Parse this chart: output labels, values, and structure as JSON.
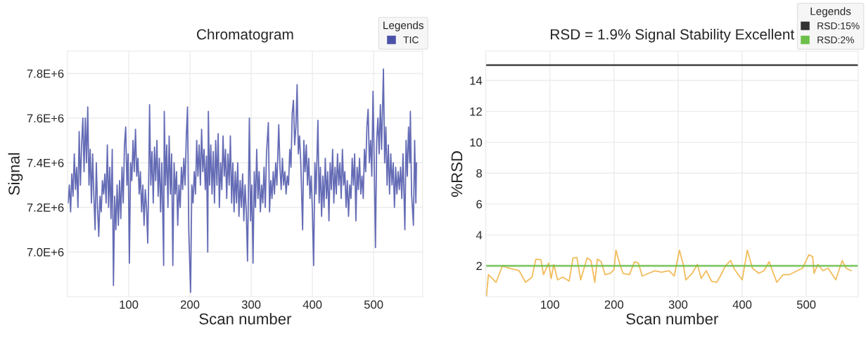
{
  "chart_data": [
    {
      "type": "line",
      "title": "Chromatogram",
      "xlabel": "Scan number",
      "ylabel": "Signal",
      "xlim": [
        0,
        580
      ],
      "ylim": [
        6800000,
        7900000
      ],
      "xticks": [
        100,
        200,
        300,
        400,
        500
      ],
      "yticks": [
        {
          "value": 7000000,
          "label": "7.0E+6"
        },
        {
          "value": 7200000,
          "label": "7.2E+6"
        },
        {
          "value": 7400000,
          "label": "7.4E+6"
        },
        {
          "value": 7600000,
          "label": "7.6E+6"
        },
        {
          "value": 7800000,
          "label": "7.8E+6"
        }
      ],
      "grid": true,
      "legend": "top right",
      "legend_title": "Legends",
      "series": [
        {
          "name": "TIC",
          "color": "#4a52a8",
          "x": [
            1,
            3,
            5,
            7,
            9,
            11,
            13,
            15,
            17,
            19,
            21,
            23,
            25,
            27,
            29,
            31,
            33,
            35,
            37,
            39,
            41,
            43,
            45,
            47,
            49,
            51,
            53,
            55,
            57,
            59,
            61,
            63,
            65,
            67,
            69,
            71,
            73,
            75,
            77,
            79,
            81,
            83,
            85,
            87,
            89,
            91,
            93,
            95,
            97,
            99,
            101,
            103,
            105,
            107,
            109,
            111,
            113,
            115,
            117,
            119,
            121,
            123,
            125,
            127,
            129,
            131,
            133,
            134,
            136,
            138,
            140,
            142,
            144,
            146,
            148,
            150,
            152,
            154,
            156,
            157,
            158,
            160,
            162,
            164,
            166,
            168,
            170,
            172,
            174,
            176,
            178,
            180,
            182,
            184,
            186,
            188,
            190,
            192,
            194,
            196,
            198,
            201,
            203,
            205,
            207,
            209,
            211,
            213,
            215,
            217,
            219,
            221,
            223,
            225,
            227,
            229,
            230,
            232,
            234,
            236,
            238,
            240,
            242,
            244,
            246,
            248,
            250,
            252,
            254,
            256,
            258,
            260,
            262,
            264,
            266,
            268,
            270,
            272,
            274,
            276,
            278,
            280,
            282,
            284,
            286,
            288,
            290,
            292,
            294,
            297,
            299,
            301,
            303,
            305,
            307,
            309,
            311,
            313,
            315,
            317,
            319,
            321,
            323,
            325,
            328,
            330,
            332,
            334,
            336,
            338,
            340,
            342,
            345,
            347,
            349,
            351,
            353,
            355,
            357,
            359,
            361,
            363,
            365,
            367,
            369,
            371,
            373,
            375,
            377,
            379,
            381,
            384,
            386,
            388,
            390,
            392,
            394,
            396,
            398,
            400,
            402,
            404,
            406,
            409,
            411,
            413,
            415,
            417,
            419,
            421,
            423,
            425,
            427,
            429,
            431,
            433,
            435,
            437,
            439,
            441,
            443,
            445,
            447,
            449,
            451,
            453,
            455,
            457,
            459,
            461,
            463,
            465,
            467,
            469,
            471,
            473,
            475,
            477,
            479,
            481,
            483,
            485,
            487,
            489,
            491,
            493,
            495,
            497,
            499,
            501,
            503,
            505,
            507,
            509,
            511,
            513,
            516,
            518,
            520,
            522,
            524,
            526,
            528,
            530,
            532,
            534,
            536,
            538,
            540,
            542,
            544,
            546,
            548,
            551,
            553,
            555,
            557,
            559,
            560,
            562,
            565,
            567,
            569,
            570
          ],
          "values": [
            7220000,
            7300000,
            7180000,
            7350000,
            7250000,
            7440000,
            7280000,
            7380000,
            7200000,
            7540000,
            7300000,
            7480000,
            7600000,
            7360000,
            7600000,
            7400000,
            7650000,
            7300000,
            7460000,
            7220000,
            7440000,
            7250000,
            7100000,
            7400000,
            7200000,
            7070000,
            7250000,
            7180000,
            7320000,
            7260000,
            7350000,
            7220000,
            7480000,
            7200000,
            7380000,
            7150000,
            7460000,
            6850000,
            7250000,
            7100000,
            7300000,
            7120000,
            7320000,
            7150000,
            7380000,
            7220000,
            7480000,
            7560000,
            7300000,
            7440000,
            6950000,
            7400000,
            7320000,
            7500000,
            7360000,
            7550000,
            7340000,
            7420000,
            7260000,
            7360000,
            7180000,
            7300000,
            7120000,
            7280000,
            7200000,
            7040000,
            7400000,
            7660000,
            7300000,
            7450000,
            7220000,
            7470000,
            7320000,
            7500000,
            7250000,
            7420000,
            7180000,
            7400000,
            7100000,
            6940000,
            7630000,
            7300000,
            7480000,
            7200000,
            7520000,
            7260000,
            7440000,
            6940000,
            7400000,
            7260000,
            7360000,
            7120000,
            7300000,
            7200000,
            7380000,
            7280000,
            7420000,
            7300000,
            7520000,
            7650000,
            7100000,
            6820000,
            7300000,
            7220000,
            7360000,
            7260000,
            7500000,
            7340000,
            7480000,
            7300000,
            7550000,
            7360000,
            7460000,
            7280000,
            7430000,
            7000000,
            7630000,
            7300000,
            7480000,
            7260000,
            7450000,
            7220000,
            7500000,
            7300000,
            7530000,
            7200000,
            7400000,
            7280000,
            7520000,
            7340000,
            7460000,
            7240000,
            7440000,
            7300000,
            7520000,
            7220000,
            7400000,
            7180000,
            7360000,
            7220000,
            7400000,
            7160000,
            7320000,
            7200000,
            7350000,
            7140000,
            7300000,
            7180000,
            6960000,
            7600000,
            7140000,
            7300000,
            6950000,
            7360000,
            7200000,
            7460000,
            7240000,
            7360000,
            7180000,
            7300000,
            7220000,
            7380000,
            7200000,
            7440000,
            7580000,
            7180000,
            7320000,
            7240000,
            7360000,
            7260000,
            7400000,
            7300000,
            7570000,
            7380000,
            7280000,
            7420000,
            7300000,
            7360000,
            7260000,
            7340000,
            7300000,
            7460000,
            7380000,
            7620000,
            7680000,
            7480000,
            7560000,
            7750000,
            7440000,
            7520000,
            7400000,
            7100000,
            7500000,
            7360000,
            7480000,
            7300000,
            7420000,
            7240000,
            7340000,
            7180000,
            6940000,
            7400000,
            7260000,
            7590000,
            7220000,
            7380000,
            7160000,
            7340000,
            7200000,
            7420000,
            7240000,
            7360000,
            7140000,
            7400000,
            7280000,
            7460000,
            7220000,
            7380000,
            7260000,
            7440000,
            7300000,
            7400000,
            7240000,
            7460000,
            7300000,
            7360000,
            7200000,
            7320000,
            7160000,
            7300000,
            7240000,
            7420000,
            7300000,
            7440000,
            7140000,
            7380000,
            7280000,
            7420000,
            7260000,
            7340000,
            7240000,
            7460000,
            7360000,
            7560000,
            7640000,
            7400000,
            7500000,
            7340000,
            7720000,
            7400000,
            7020000,
            7500000,
            7600000,
            7440000,
            7660000,
            7460000,
            7820000,
            7400000,
            7560000,
            7300000,
            7480000,
            7260000,
            7440000,
            7300000,
            7400000,
            7200000,
            7380000,
            7260000,
            7360000,
            7280000,
            7380000,
            7240000,
            7440000,
            7100000,
            7500000,
            7340000,
            7560000,
            7400000,
            7630000,
            7260000,
            7120000,
            7500000,
            7220000,
            7400000
          ]
        }
      ]
    },
    {
      "type": "line",
      "title": "RSD = 1.9% Signal Stability Excellent",
      "xlabel": "Scan number",
      "ylabel": "%RSD",
      "xlim": [
        0,
        581
      ],
      "ylim": [
        0,
        15.9
      ],
      "xticks": [
        100,
        200,
        300,
        400,
        500
      ],
      "yticks": [
        2,
        4,
        6,
        8,
        10,
        12,
        14
      ],
      "grid": true,
      "legend": "top right",
      "legend_title": "Legends",
      "ref_lines": [
        {
          "axis": "y",
          "value": 15,
          "label": "RSD:15%",
          "color": "#333333"
        },
        {
          "axis": "y",
          "value": 2,
          "label": "RSD:2%",
          "color": "#6cc04a"
        }
      ],
      "series": [
        {
          "color": "#f0b040",
          "x": [
            1,
            4,
            10,
            16,
            26,
            36,
            46,
            52,
            62,
            72,
            78,
            86,
            90,
            98,
            102,
            106,
            112,
            120,
            130,
            136,
            142,
            148,
            158,
            164,
            170,
            174,
            180,
            186,
            194,
            200,
            203,
            208,
            214,
            224,
            232,
            238,
            244,
            254,
            264,
            274,
            286,
            294,
            302,
            308,
            312,
            322,
            330,
            336,
            344,
            352,
            360,
            366,
            374,
            382,
            388,
            400,
            408,
            416,
            426,
            434,
            442,
            454,
            464,
            474,
            486,
            494,
            504,
            510,
            512,
            518,
            526,
            534,
            546,
            556,
            562,
            570
          ],
          "values": [
            0.0,
            1.43,
            1.18,
            0.93,
            2.0,
            1.85,
            1.76,
            1.68,
            0.93,
            1.26,
            2.43,
            2.38,
            1.43,
            2.18,
            1.18,
            2.09,
            1.09,
            1.26,
            1.01,
            2.51,
            2.54,
            1.09,
            2.51,
            2.34,
            0.93,
            2.43,
            2.26,
            1.43,
            1.51,
            1.76,
            3.01,
            2.26,
            1.51,
            1.43,
            2.26,
            2.18,
            1.34,
            1.51,
            1.68,
            1.59,
            1.68,
            1.34,
            3.01,
            2.09,
            1.09,
            1.51,
            2.09,
            1.18,
            1.68,
            1.01,
            0.93,
            1.34,
            2.01,
            2.34,
            1.76,
            1.09,
            3.01,
            1.84,
            1.51,
            1.68,
            2.26,
            0.93,
            1.43,
            1.43,
            1.68,
            1.84,
            2.71,
            2.59,
            1.51,
            2.09,
            1.68,
            1.84,
            1.09,
            2.34,
            1.84,
            1.68
          ]
        }
      ]
    }
  ]
}
